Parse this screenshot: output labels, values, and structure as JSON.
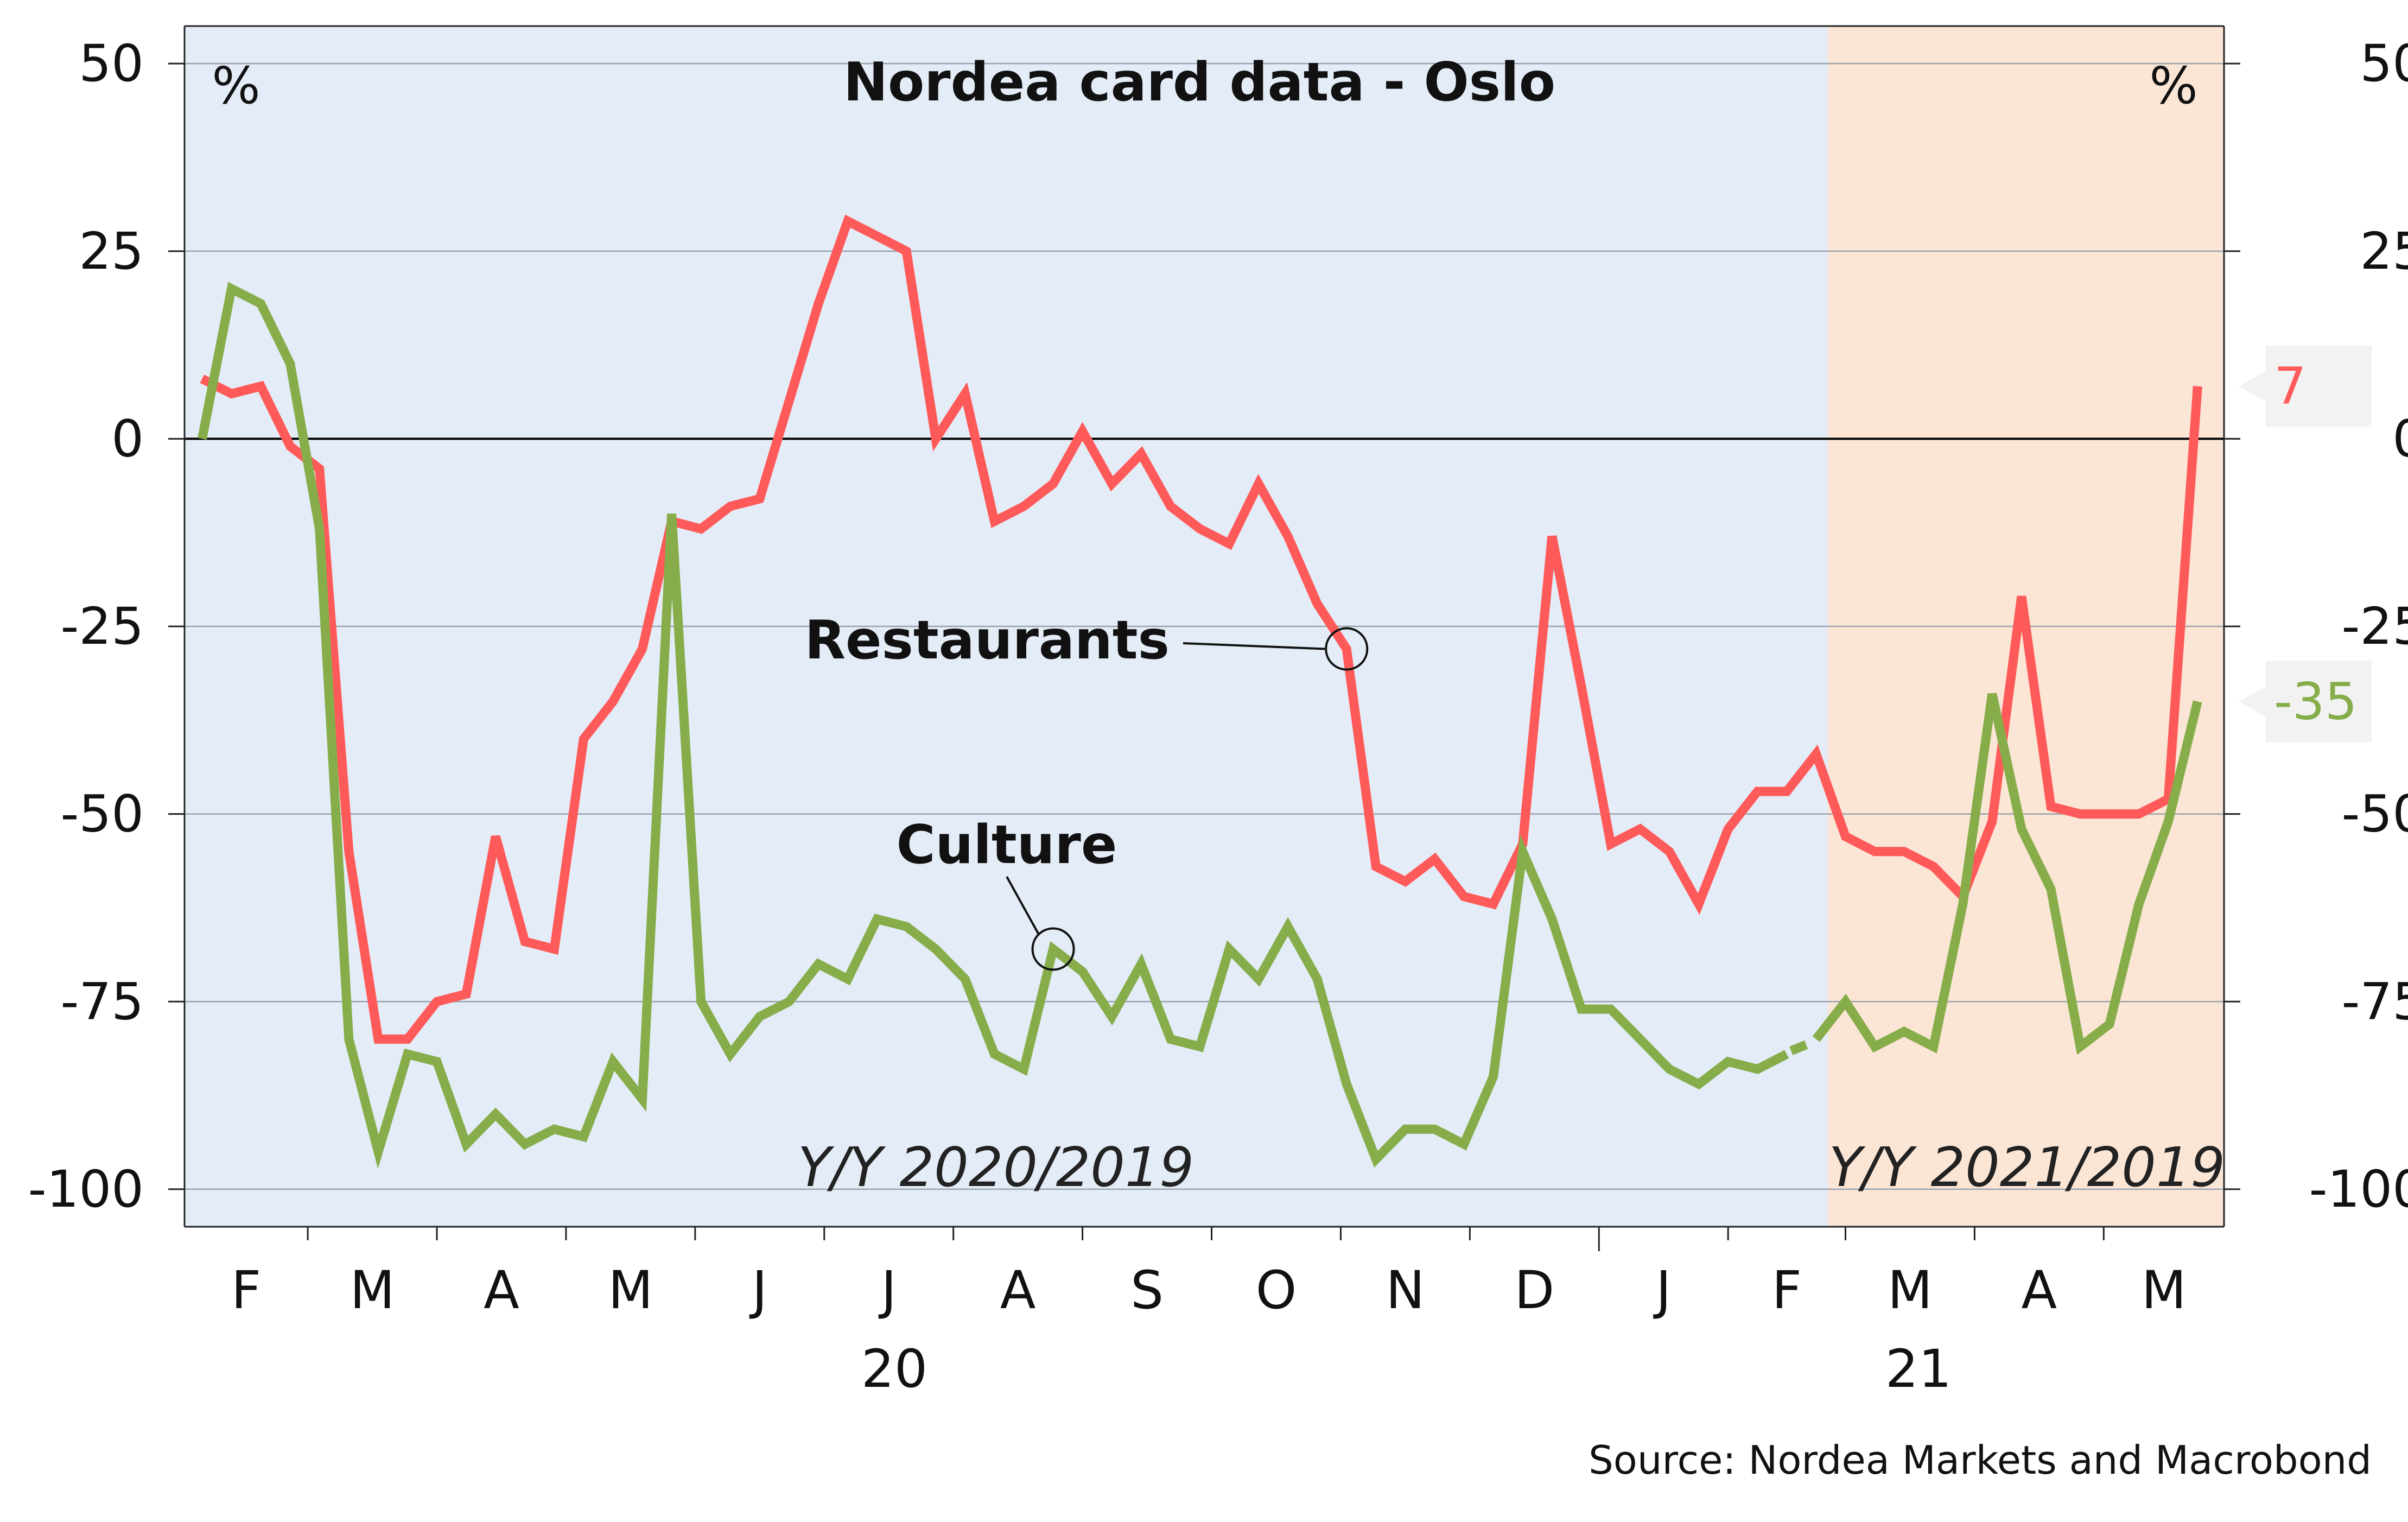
{
  "chart_data": {
    "type": "line",
    "title": "Nordea card data - Oslo",
    "unit_left": "%",
    "unit_right": "%",
    "source": "Source: Nordea Markets and Macrobond",
    "ylim": [
      -105,
      55
    ],
    "yticks": [
      50,
      25,
      0,
      -25,
      -50,
      -75,
      -100
    ],
    "ytick_labels": [
      "50",
      "25",
      "0",
      "-25",
      "-50",
      "-75",
      "-100"
    ],
    "grid": true,
    "legend": "inline labels",
    "month_labels": [
      "F",
      "M",
      "A",
      "M",
      "J",
      "J",
      "A",
      "S",
      "O",
      "N",
      "D",
      "J",
      "F",
      "M",
      "A",
      "M"
    ],
    "year_labels": [
      "20",
      "21"
    ],
    "periods": [
      {
        "label": "Y/Y 2020/2019",
        "from_week": 0,
        "to_week": 56,
        "color": "#e4ecf7"
      },
      {
        "label": "Y/Y 2021/2019",
        "from_week": 56,
        "to_week": 69.5,
        "color": "#fbe6d6"
      }
    ],
    "x_unit": "weeks since start of Feb 2020",
    "x": [
      0.6,
      1.6,
      2.6,
      3.6,
      4.6,
      5.6,
      6.6,
      7.6,
      8.6,
      9.6,
      10.6,
      11.6,
      12.6,
      13.6,
      14.6,
      15.6,
      16.6,
      17.6,
      18.6,
      19.6,
      20.6,
      21.6,
      22.6,
      23.6,
      24.6,
      25.6,
      26.6,
      27.6,
      28.6,
      29.6,
      30.6,
      31.6,
      32.6,
      33.6,
      34.6,
      35.6,
      36.6,
      37.6,
      38.6,
      39.6,
      40.6,
      41.6,
      42.6,
      43.6,
      44.6,
      45.6,
      46.6,
      47.6,
      48.6,
      49.6,
      50.6,
      51.6,
      52.6,
      53.6,
      54.6,
      55.6,
      56.6,
      57.6,
      58.6,
      59.6,
      60.6,
      61.6,
      62.6,
      63.6,
      64.6,
      65.6,
      66.6,
      67.6,
      68.6
    ],
    "series": [
      {
        "name": "Restaurants",
        "color": "#ff5a5a",
        "end_label": "7",
        "values": [
          8,
          6,
          7,
          -1,
          -4,
          -55,
          -80,
          -80,
          -75,
          -74,
          -53,
          -67,
          -68,
          -40,
          -35,
          -28,
          -11,
          -12,
          -9,
          -8,
          5,
          18,
          29,
          27,
          25,
          0,
          6,
          -11,
          -9,
          -6,
          1,
          -6,
          -2,
          -9,
          -12,
          -14,
          -6,
          -13,
          -22,
          -28,
          -57,
          -59,
          -56,
          -61,
          -62,
          -54,
          -13,
          -33,
          -54,
          -52,
          -55,
          -62,
          -52,
          -47,
          -47,
          -42,
          -53,
          -55,
          -55,
          -57,
          -61,
          -51,
          -21,
          -49,
          -50,
          -50,
          -50,
          -48,
          7
        ],
        "breaks": []
      },
      {
        "name": "Culture",
        "color": "#86ad4a",
        "end_label": "-35",
        "values": [
          0,
          20,
          18,
          10,
          -12,
          -80,
          -95,
          -82,
          -83,
          -94,
          -90,
          -94,
          -92,
          -93,
          -83,
          -88,
          -10,
          -75,
          -82,
          -77,
          -75,
          -70,
          -72,
          -64,
          -65,
          -68,
          -72,
          -82,
          -84,
          -68,
          -71,
          -77,
          -70,
          -80,
          -81,
          -68,
          -72,
          -65,
          -72,
          -86,
          -96,
          -92,
          -92,
          -94,
          -85,
          -55,
          -64,
          -76,
          -76,
          -80,
          -84,
          -86,
          -83,
          -84,
          -82,
          -80,
          -75,
          -81,
          -79,
          -81,
          -62,
          -34,
          -52,
          -60,
          -81,
          -78,
          -62,
          -51,
          -35
        ],
        "breaks": [
          54
        ]
      }
    ],
    "annotations": [
      {
        "text": "Restaurants",
        "series": 0,
        "at_week": 39.6
      },
      {
        "text": "Culture",
        "series": 1,
        "at_week": 29.6
      }
    ]
  }
}
